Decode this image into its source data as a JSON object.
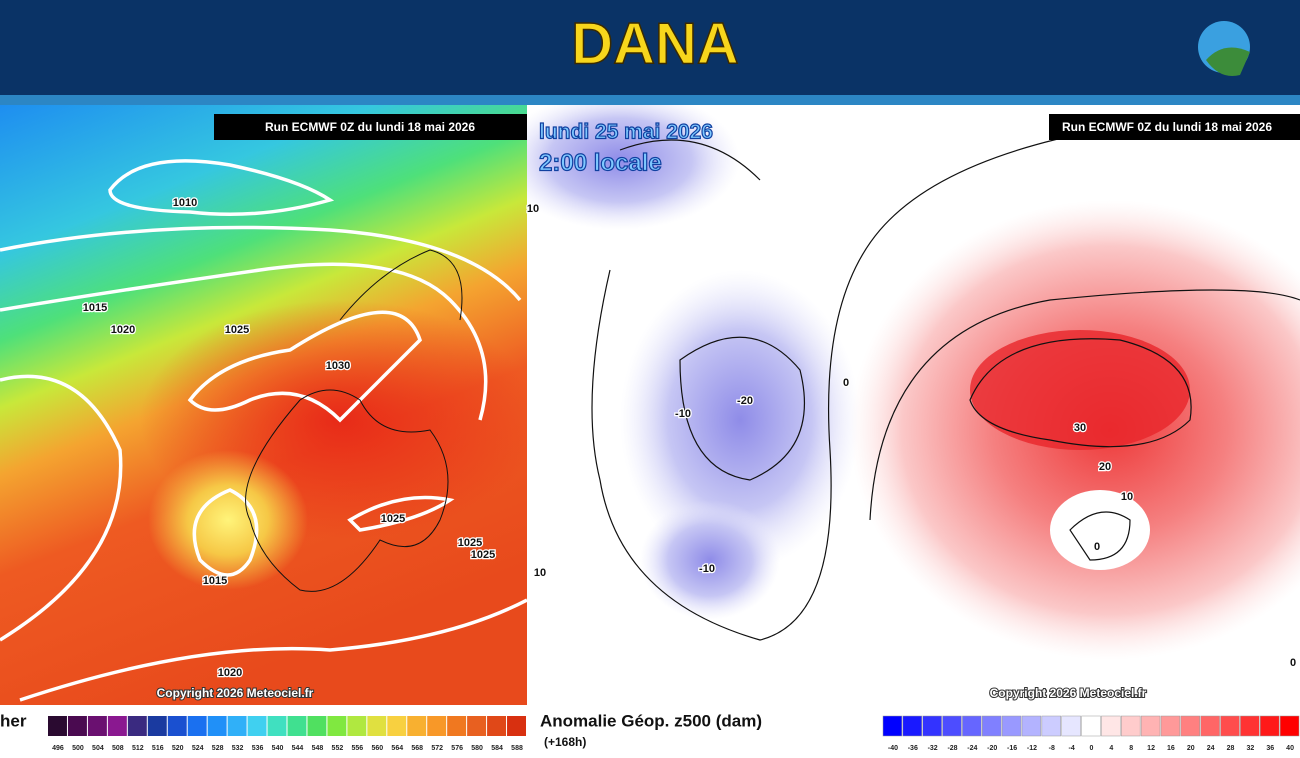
{
  "header": {
    "title": "DANA"
  },
  "left_map": {
    "run_label": "Run ECMWF 0Z du lundi 18 mai 2026",
    "contour_labels": [
      1010,
      1015,
      1020,
      1025,
      1030,
      1025,
      1025,
      1025,
      1015,
      1020
    ],
    "copyright": "Copyright 2026 Meteociel.fr",
    "legend_label": "her",
    "legend_ticks": [
      496,
      500,
      504,
      508,
      512,
      516,
      520,
      524,
      528,
      532,
      536,
      540,
      544,
      548,
      552,
      556,
      560,
      564,
      568,
      572,
      576,
      580,
      584,
      588
    ]
  },
  "right_map": {
    "date": "lundi 25 mai 2026",
    "time": "2:00 locale",
    "run_label": "Run ECMWF 0Z du lundi 18 mai 2026",
    "contour_labels": [
      10,
      -10,
      -20,
      -10,
      10,
      0,
      30,
      20,
      10,
      0,
      0
    ],
    "copyright": "Copyright 2026 Meteociel.fr",
    "legend_title": "Anomalie Géop. z500 (dam)",
    "legend_subtitle": "(+168h)",
    "legend_ticks": [
      -40,
      -36,
      -32,
      -28,
      -24,
      -20,
      -16,
      -12,
      -8,
      -4,
      0,
      4,
      8,
      12,
      16,
      20,
      24,
      28,
      32,
      36,
      40
    ]
  }
}
